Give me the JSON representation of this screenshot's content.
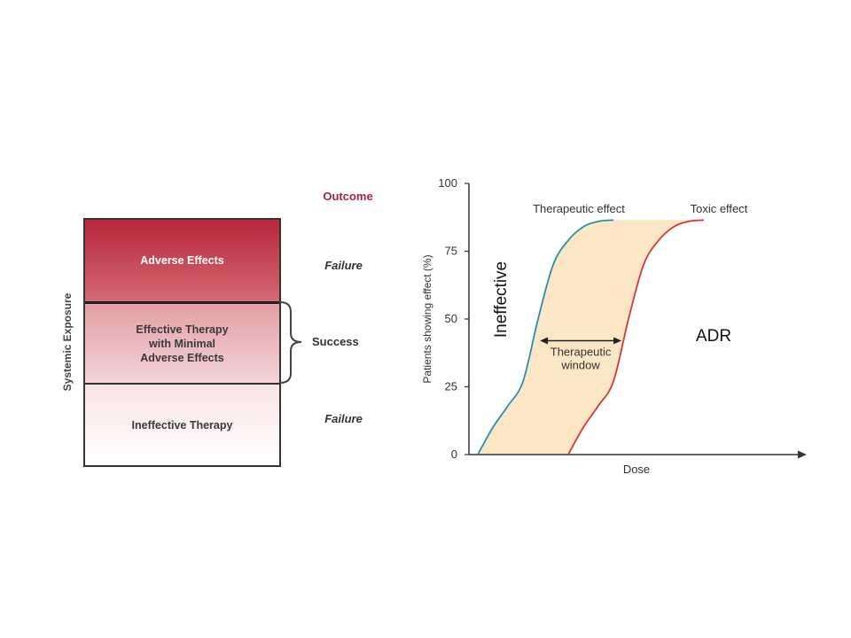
{
  "left_panel": {
    "y_axis_title": "Systemic Exposure",
    "outcome_header": "Outcome",
    "zones": {
      "adverse": "Adverse Effects",
      "effective_lines": [
        "Effective Therapy",
        "with Minimal",
        "Adverse Effects"
      ],
      "ineffective": "Ineffective Therapy"
    },
    "outcomes": {
      "top": "Failure",
      "middle": "Success",
      "bottom": "Failure"
    },
    "colors": {
      "adverse": "#b8263a",
      "effective": "#e3a0a6",
      "outcome_header": "#a5253a"
    }
  },
  "chart_data": {
    "type": "line",
    "title": "",
    "xlabel": "Dose",
    "ylabel": "Patients showing effect (%)",
    "ylim": [
      0,
      100
    ],
    "yticks": [
      0,
      25,
      50,
      75,
      100
    ],
    "xlim": [
      0,
      100
    ],
    "series": [
      {
        "name": "Therapeutic effect",
        "color": "#2a8fb5",
        "x": [
          0,
          5,
          10,
          15,
          20,
          25,
          30,
          35,
          40,
          45
        ],
        "y": [
          0,
          10,
          18,
          27,
          50,
          70,
          79,
          84,
          86,
          86.5
        ]
      },
      {
        "name": "Toxic effect",
        "color": "#d93636",
        "x": [
          30,
          35,
          40,
          45,
          50,
          55,
          60,
          65,
          70,
          75
        ],
        "y": [
          0,
          10,
          18,
          27,
          50,
          70,
          79,
          84,
          86,
          86.5
        ]
      }
    ],
    "shaded_region_color": "#fbe6c5",
    "annotation": {
      "label_lines": [
        "Therapeutic",
        "window"
      ],
      "y": 42
    },
    "overlay_labels": {
      "left": "Ineffective",
      "right": "ADR"
    }
  }
}
